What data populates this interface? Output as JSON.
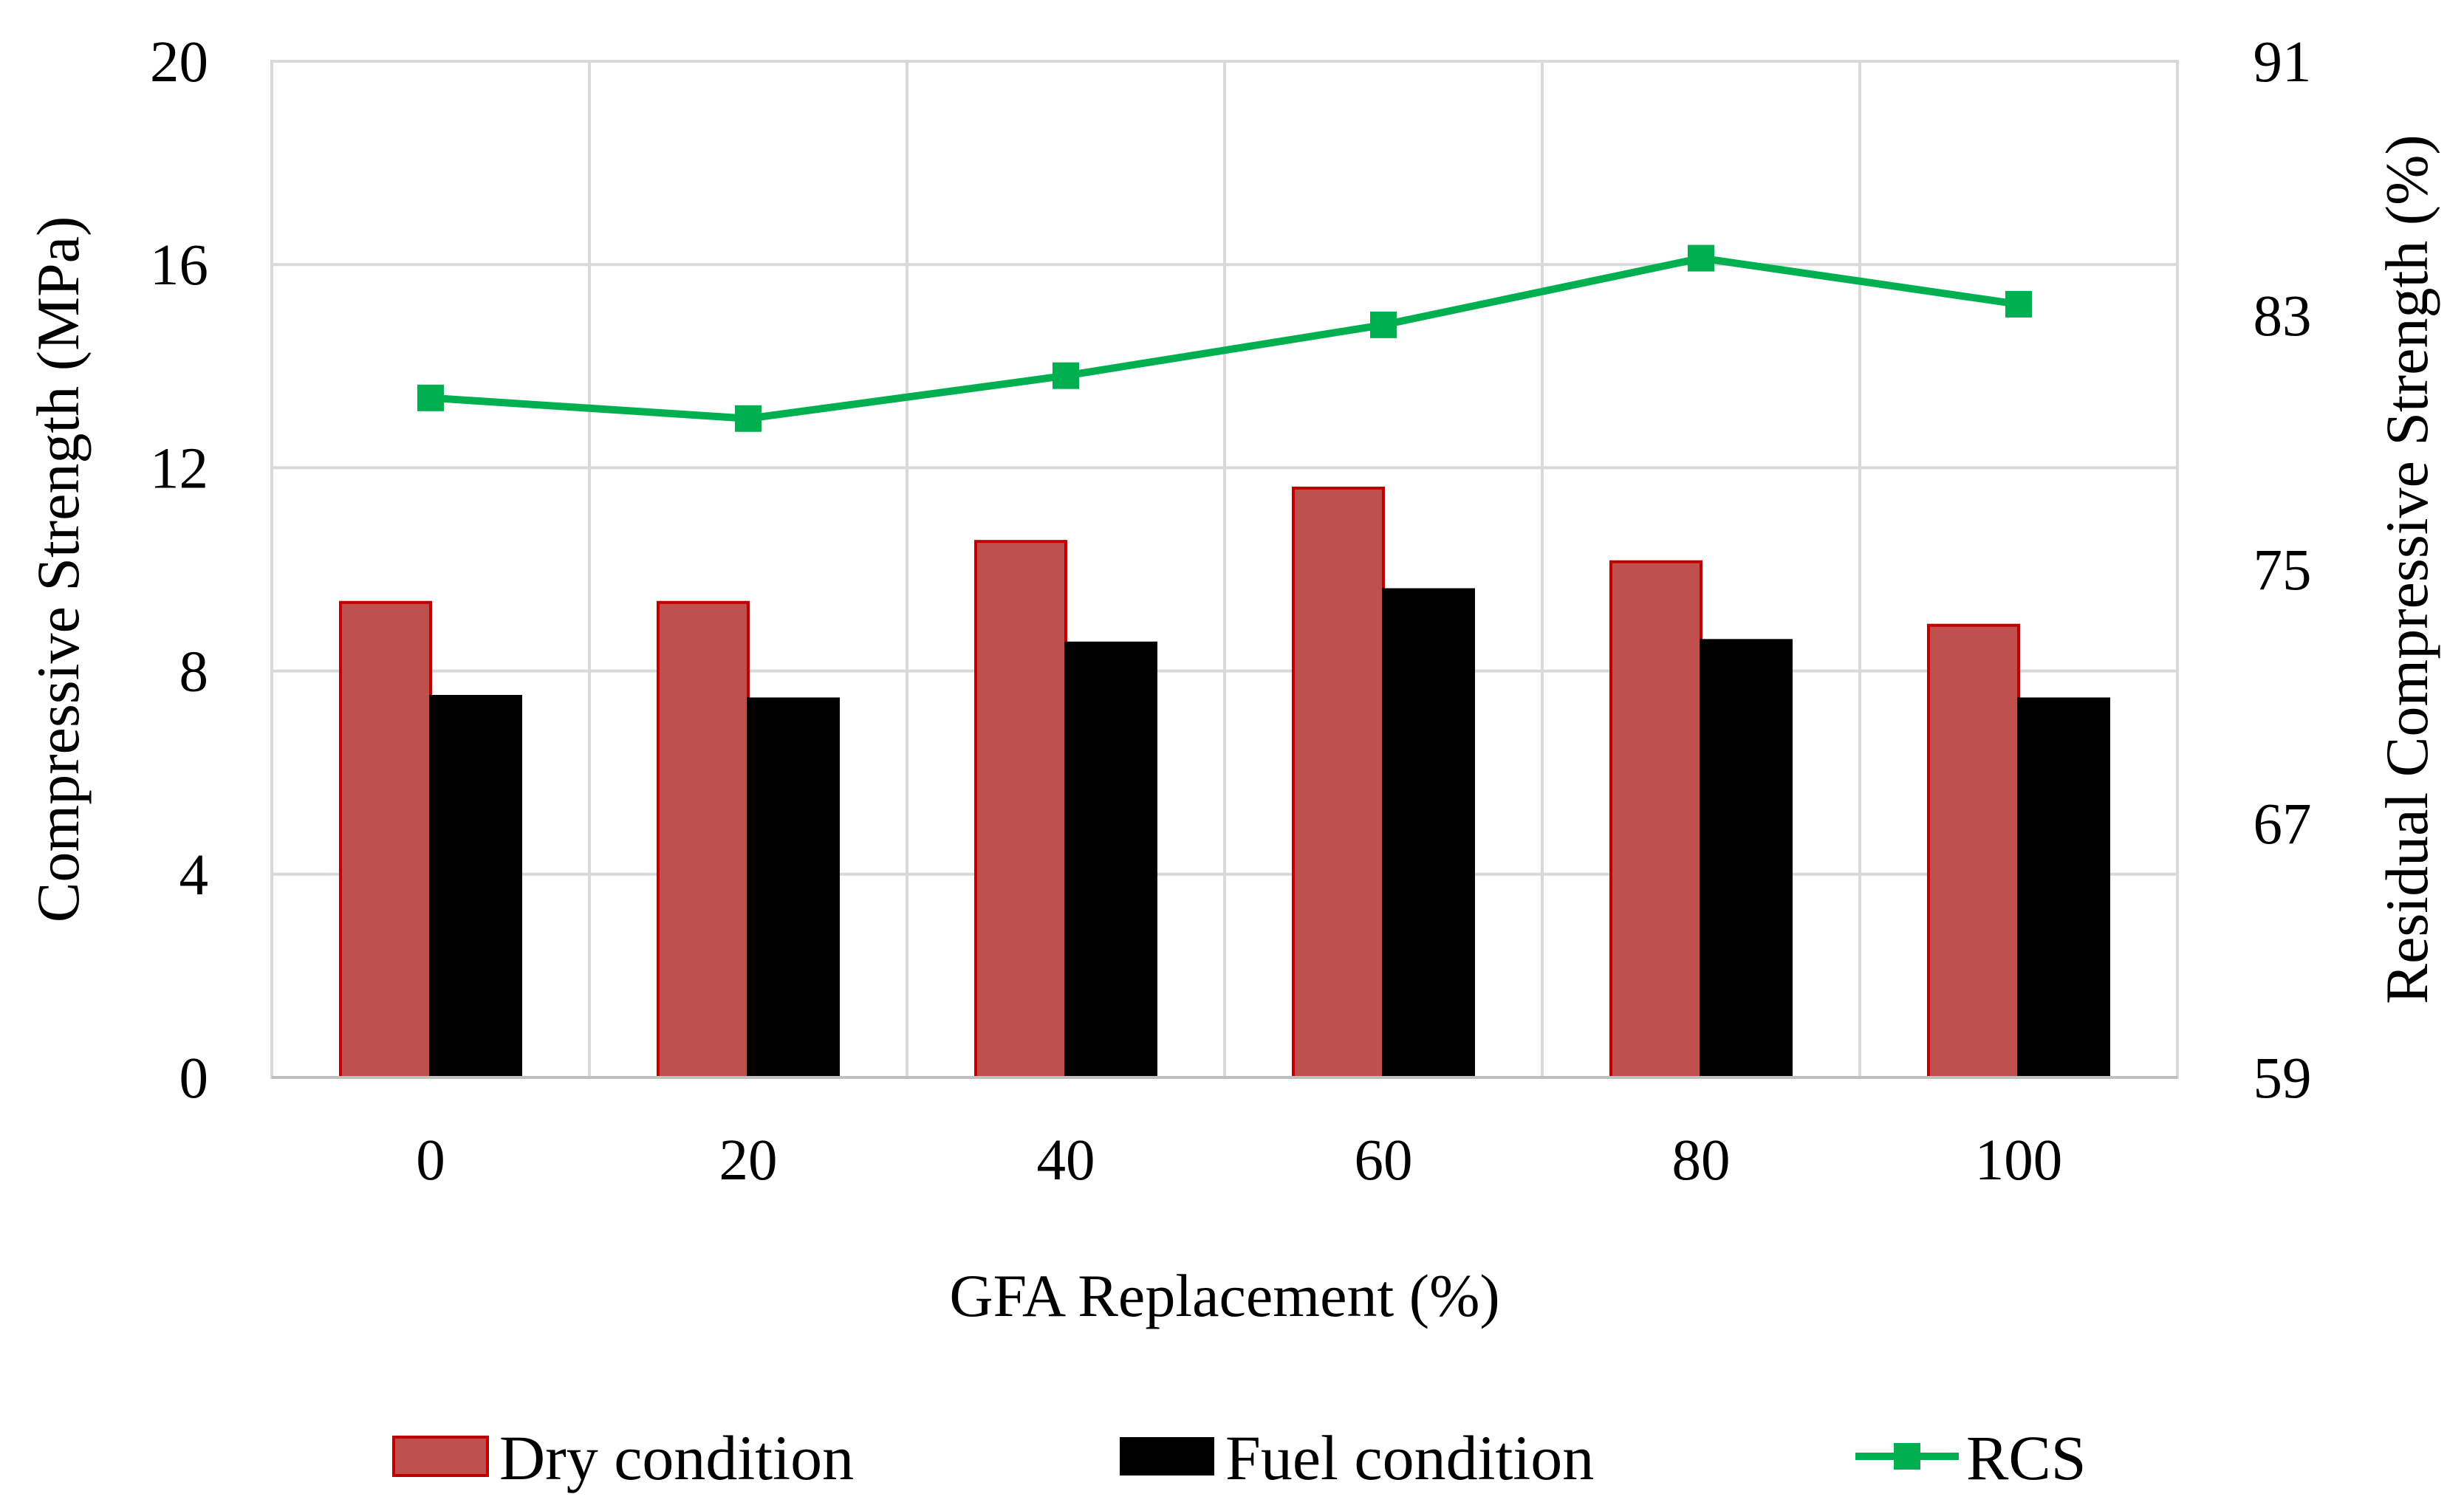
{
  "chart_data": {
    "type": "bar",
    "title": "",
    "xlabel": "GFA Replacement (%)",
    "ylabel": "Compressive Strength (MPa)",
    "y2label": "Residual Compressive Strength (%)",
    "categories": [
      "0",
      "20",
      "40",
      "60",
      "80",
      "100"
    ],
    "ylim": [
      0,
      20
    ],
    "yticks": [
      0,
      4,
      8,
      12,
      16,
      20
    ],
    "y2lim": [
      59,
      91
    ],
    "y2ticks": [
      59,
      67,
      75,
      83,
      91
    ],
    "grid": true,
    "legend_position": "bottom",
    "series": [
      {
        "name": "Dry condition",
        "type": "bar",
        "axis": "left",
        "color": "#c0504d",
        "edge": "#c00000",
        "values": [
          9.35,
          9.35,
          10.55,
          11.6,
          10.15,
          8.9
        ]
      },
      {
        "name": "Fuel condition",
        "type": "bar",
        "axis": "left",
        "color": "#000000",
        "edge": "#000000",
        "values": [
          7.5,
          7.45,
          8.55,
          9.6,
          8.6,
          7.45
        ]
      },
      {
        "name": "RCS",
        "type": "line",
        "axis": "right",
        "color": "#00b050",
        "marker": "square",
        "values": [
          80.4,
          79.75,
          81.1,
          82.7,
          84.8,
          83.35
        ]
      }
    ]
  }
}
